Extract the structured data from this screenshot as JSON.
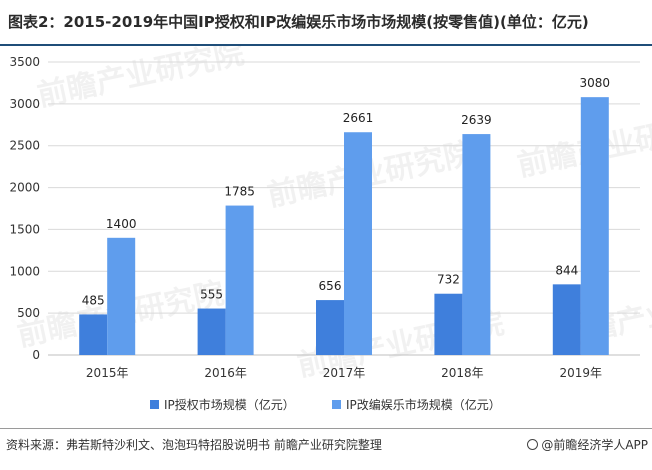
{
  "title": "图表2：2015-2019年中国IP授权和IP改编娱乐市场市场规模(按零售值)(单位：亿元)",
  "source_text": "资料来源：弗若斯特沙利文、泡泡玛特招股说明书 前瞻产业研究院整理",
  "brand_text": "@前瞻经济学人APP",
  "watermark_text": "前瞻产业研究院",
  "colors": {
    "series1": "#3f7fdc",
    "series2": "#5f9ded",
    "grid": "#d9d9d9"
  },
  "chart_data": {
    "type": "bar",
    "categories": [
      "2015年",
      "2016年",
      "2017年",
      "2018年",
      "2019年"
    ],
    "series": [
      {
        "name": "IP授权市场规模（亿元）",
        "values": [
          485,
          555,
          656,
          732,
          844
        ]
      },
      {
        "name": "IP改编娱乐市场规模（亿元）",
        "values": [
          1400,
          1785,
          2661,
          2639,
          3080
        ]
      }
    ],
    "ylim": [
      0,
      3500
    ],
    "yticks": [
      0,
      500,
      1000,
      1500,
      2000,
      2500,
      3000,
      3500
    ],
    "grid": true,
    "legend": "bottom"
  }
}
